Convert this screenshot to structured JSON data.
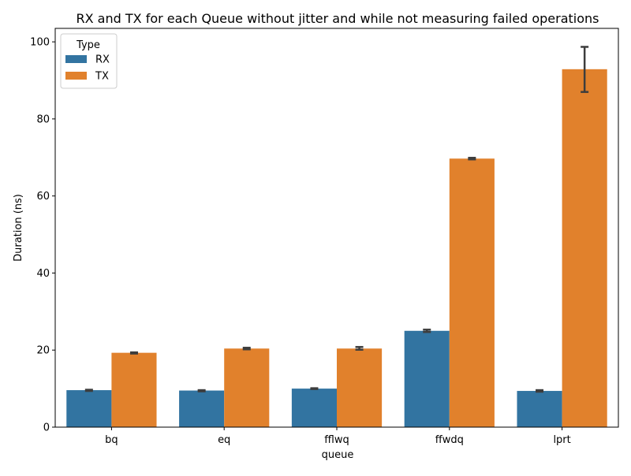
{
  "chart_data": {
    "type": "bar",
    "title": "RX and TX for each Queue without jitter and while not measuring failed operations",
    "xlabel": "queue",
    "ylabel": "Duration (ns)",
    "categories": [
      "bq",
      "eq",
      "fflwq",
      "ffwdq",
      "lprt"
    ],
    "ylim": [
      0,
      103.5
    ],
    "yticks": [
      0,
      20,
      40,
      60,
      80,
      100
    ],
    "grid": false,
    "legend": {
      "title": "Type",
      "placement": "top-left"
    },
    "series": [
      {
        "name": "RX",
        "color": "#3274a1",
        "values": [
          9.6,
          9.5,
          10.0,
          25.0,
          9.4
        ],
        "ci": [
          [
            9.4,
            9.7
          ],
          [
            9.3,
            9.6
          ],
          [
            9.9,
            10.1
          ],
          [
            24.7,
            25.3
          ],
          [
            9.2,
            9.6
          ]
        ]
      },
      {
        "name": "TX",
        "color": "#e1812c",
        "values": [
          19.3,
          20.4,
          20.4,
          69.7,
          92.9
        ],
        "ci": [
          [
            19.1,
            19.4
          ],
          [
            20.2,
            20.6
          ],
          [
            20.1,
            20.8
          ],
          [
            69.5,
            69.9
          ],
          [
            87.0,
            98.7
          ]
        ]
      }
    ],
    "errorbar_color": "#3d3d3d"
  }
}
